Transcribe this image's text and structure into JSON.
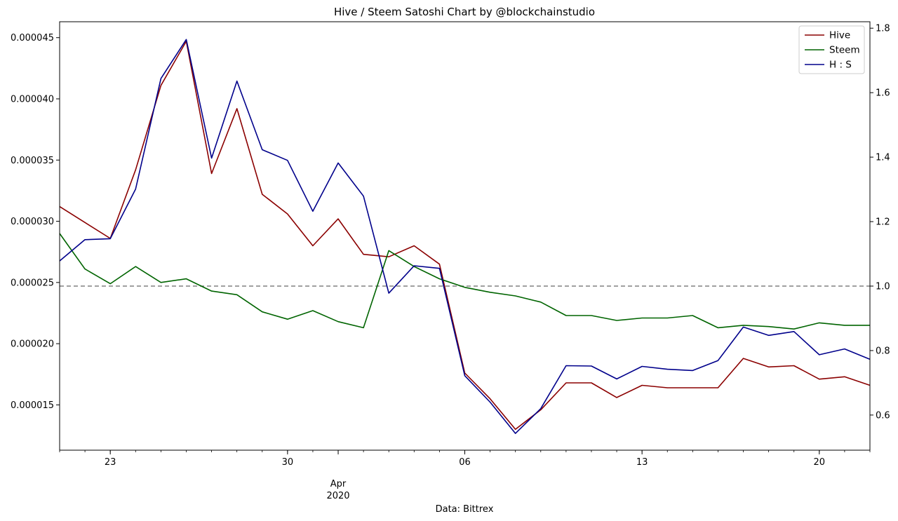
{
  "chart_data": {
    "type": "line",
    "title": "Hive / Steem Satoshi Chart by @blockchainstudio",
    "xlabel": "Data: Bittrex",
    "x_axis": {
      "start_date": "2020-03-21",
      "end_date": "2020-04-22",
      "major_ticks": [
        {
          "date": "2020-03-23",
          "label": "23"
        },
        {
          "date": "2020-03-30",
          "label": "30"
        },
        {
          "date": "2020-04-06",
          "label": "06"
        },
        {
          "date": "2020-04-13",
          "label": "13"
        },
        {
          "date": "2020-04-20",
          "label": "20"
        }
      ],
      "month_label": {
        "date": "2020-04-01",
        "month": "Apr",
        "year": "2020"
      }
    },
    "y_left": {
      "ylim": [
        1.13e-05,
        4.63e-05
      ],
      "ticks": [
        "0.000015",
        "0.000020",
        "0.000025",
        "0.000030",
        "0.000035",
        "0.000040",
        "0.000045"
      ]
    },
    "y_right": {
      "ylim": [
        0.491,
        1.82
      ],
      "ticks": [
        "0.6",
        "0.8",
        "1.0",
        "1.2",
        "1.4",
        "1.6",
        "1.8"
      ]
    },
    "reference_line": {
      "axis": "right",
      "value": 1.0,
      "style": "dashed",
      "color": "#808080"
    },
    "legend": {
      "position": "top-right"
    },
    "dates": [
      "2020-03-21",
      "2020-03-22",
      "2020-03-23",
      "2020-03-24",
      "2020-03-25",
      "2020-03-26",
      "2020-03-27",
      "2020-03-28",
      "2020-03-29",
      "2020-03-30",
      "2020-03-31",
      "2020-04-01",
      "2020-04-02",
      "2020-04-03",
      "2020-04-04",
      "2020-04-05",
      "2020-04-06",
      "2020-04-07",
      "2020-04-08",
      "2020-04-09",
      "2020-04-10",
      "2020-04-11",
      "2020-04-12",
      "2020-04-13",
      "2020-04-14",
      "2020-04-15",
      "2020-04-16",
      "2020-04-17",
      "2020-04-18",
      "2020-04-19",
      "2020-04-20",
      "2020-04-21",
      "2020-04-22"
    ],
    "series": [
      {
        "name": "Hive",
        "axis": "left",
        "color": "#8b0000",
        "values": [
          3.12e-05,
          2.99e-05,
          2.86e-05,
          3.42e-05,
          4.11e-05,
          4.47e-05,
          3.39e-05,
          3.92e-05,
          3.22e-05,
          3.06e-05,
          2.8e-05,
          3.02e-05,
          2.73e-05,
          2.71e-05,
          2.8e-05,
          2.65e-05,
          1.76e-05,
          1.55e-05,
          1.3e-05,
          1.46e-05,
          1.68e-05,
          1.68e-05,
          1.56e-05,
          1.66e-05,
          1.64e-05,
          1.64e-05,
          1.64e-05,
          1.88e-05,
          1.81e-05,
          1.82e-05,
          1.71e-05,
          1.73e-05,
          1.66e-05
        ]
      },
      {
        "name": "Steem",
        "axis": "left",
        "color": "#006400",
        "values": [
          2.9e-05,
          2.61e-05,
          2.49e-05,
          2.63e-05,
          2.5e-05,
          2.53e-05,
          2.43e-05,
          2.4e-05,
          2.26e-05,
          2.2e-05,
          2.27e-05,
          2.18e-05,
          2.13e-05,
          2.76e-05,
          2.63e-05,
          2.53e-05,
          2.46e-05,
          2.42e-05,
          2.39e-05,
          2.34e-05,
          2.23e-05,
          2.23e-05,
          2.19e-05,
          2.21e-05,
          2.21e-05,
          2.23e-05,
          2.13e-05,
          2.15e-05,
          2.14e-05,
          2.12e-05,
          2.17e-05,
          2.15e-05,
          2.15e-05
        ]
      },
      {
        "name": "H : S",
        "axis": "right",
        "color": "#00008b",
        "values": [
          1.078,
          1.144,
          1.147,
          1.301,
          1.644,
          1.765,
          1.397,
          1.636,
          1.423,
          1.39,
          1.232,
          1.382,
          1.279,
          0.978,
          1.063,
          1.055,
          0.722,
          0.64,
          0.543,
          0.62,
          0.753,
          0.752,
          0.712,
          0.751,
          0.742,
          0.738,
          0.769,
          0.873,
          0.847,
          0.859,
          0.787,
          0.805,
          0.773
        ]
      }
    ]
  }
}
